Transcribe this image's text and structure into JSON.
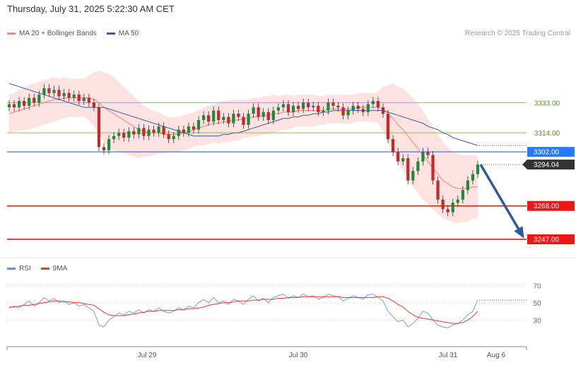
{
  "header": {
    "timestamp": "Thursday, July 31, 2025 5:22:30 AM CET"
  },
  "legend_main": [
    {
      "label": "MA 20 + Bollinger Bands",
      "color": "#f28b82"
    },
    {
      "label": "MA 50",
      "color": "#3d5a99"
    }
  ],
  "credit": "Research © 2025 Trading Central",
  "legend_rsi": [
    {
      "label": "RSI",
      "color": "#6a8fd8"
    },
    {
      "label": "9MA",
      "color": "#e53935"
    }
  ],
  "chart_data": [
    {
      "type": "candlestick",
      "x_ticks": [
        "Jul 29",
        "Jul 30",
        "Jul 31",
        "Aug 6"
      ],
      "ylim": [
        3235,
        3370
      ],
      "levels": [
        {
          "label": "3333.00",
          "value": 3333,
          "style": "line",
          "color": "#8bc34a"
        },
        {
          "label": "3314.00",
          "value": 3314,
          "style": "line",
          "color": "#8bc34a"
        },
        {
          "label": "3302.00",
          "value": 3302,
          "style": "box",
          "color": "#2979ff"
        },
        {
          "label": "3294.04",
          "value": 3294.04,
          "style": "price",
          "color": "#333333"
        },
        {
          "label": "3268.00",
          "value": 3268,
          "style": "box",
          "color": "#f01414"
        },
        {
          "label": "3247.00",
          "value": 3247,
          "style": "box",
          "color": "#f01414"
        }
      ],
      "forecast_arrow": {
        "from": 3294.04,
        "to": 3247
      },
      "close": [
        3332,
        3330,
        3334,
        3331,
        3336,
        3333,
        3338,
        3342,
        3339,
        3341,
        3337,
        3339,
        3336,
        3338,
        3334,
        3336,
        3333,
        3330,
        3305,
        3303,
        3310,
        3312,
        3314,
        3311,
        3315,
        3313,
        3317,
        3312,
        3316,
        3314,
        3318,
        3313,
        3310,
        3312,
        3316,
        3314,
        3318,
        3316,
        3322,
        3325,
        3321,
        3328,
        3322,
        3324,
        3320,
        3326,
        3324,
        3319,
        3326,
        3330,
        3324,
        3327,
        3322,
        3328,
        3330,
        3332,
        3327,
        3331,
        3329,
        3333,
        3330,
        3331,
        3327,
        3328,
        3333,
        3331,
        3330,
        3325,
        3328,
        3331,
        3329,
        3327,
        3332,
        3334,
        3330,
        3326,
        3310,
        3302,
        3296,
        3298,
        3284,
        3290,
        3296,
        3302,
        3300,
        3284,
        3272,
        3266,
        3264,
        3270,
        3272,
        3278,
        3284,
        3288,
        3294
      ],
      "ma20": [
        3326,
        3327,
        3328,
        3329,
        3330,
        3331,
        3332,
        3333,
        3334,
        3335,
        3335,
        3336,
        3336,
        3336,
        3336,
        3336,
        3336,
        3335,
        3333,
        3330,
        3328,
        3326,
        3324,
        3322,
        3320,
        3318,
        3316,
        3315,
        3314,
        3314,
        3314,
        3313,
        3313,
        3313,
        3313,
        3314,
        3315,
        3316,
        3317,
        3318,
        3319,
        3320,
        3320,
        3321,
        3321,
        3322,
        3322,
        3323,
        3323,
        3324,
        3324,
        3325,
        3325,
        3326,
        3326,
        3327,
        3327,
        3327,
        3328,
        3328,
        3328,
        3328,
        3328,
        3328,
        3329,
        3329,
        3329,
        3329,
        3329,
        3329,
        3330,
        3330,
        3330,
        3330,
        3330,
        3329,
        3326,
        3323,
        3319,
        3316,
        3312,
        3308,
        3304,
        3300,
        3296,
        3292,
        3288,
        3284,
        3282,
        3280,
        3279,
        3279,
        3279,
        3280,
        3280
      ],
      "ma50": [
        3345,
        3344,
        3343,
        3342,
        3341,
        3340,
        3339,
        3338,
        3337,
        3336,
        3335,
        3334,
        3333,
        3332,
        3331,
        3330,
        3330,
        3330,
        3330,
        3330,
        3329,
        3328,
        3327,
        3326,
        3325,
        3324,
        3323,
        3322,
        3321,
        3320,
        3319,
        3318,
        3317,
        3316,
        3315,
        3314,
        3313,
        3312,
        3312,
        3312,
        3312,
        3312,
        3312,
        3313,
        3313,
        3314,
        3314,
        3315,
        3316,
        3317,
        3318,
        3319,
        3320,
        3321,
        3322,
        3323,
        3323,
        3324,
        3324,
        3325,
        3325,
        3326,
        3326,
        3327,
        3327,
        3328,
        3328,
        3328,
        3328,
        3328,
        3328,
        3328,
        3328,
        3328,
        3328,
        3328,
        3327,
        3326,
        3325,
        3324,
        3323,
        3322,
        3321,
        3320,
        3318,
        3317,
        3316,
        3314,
        3313,
        3311,
        3310,
        3309,
        3308,
        3307,
        3306
      ],
      "bb_width": [
        12,
        12,
        13,
        13,
        14,
        14,
        14,
        14,
        14,
        14,
        13,
        13,
        12,
        12,
        12,
        12,
        14,
        17,
        20,
        22,
        23,
        23,
        22,
        21,
        20,
        19,
        18,
        16,
        15,
        14,
        13,
        12,
        11,
        11,
        11,
        11,
        11,
        11,
        11,
        12,
        12,
        12,
        13,
        13,
        13,
        13,
        13,
        12,
        12,
        12,
        12,
        12,
        12,
        12,
        11,
        11,
        11,
        10,
        10,
        10,
        10,
        10,
        9,
        9,
        9,
        9,
        9,
        9,
        9,
        9,
        9,
        9,
        9,
        9,
        10,
        14,
        18,
        22,
        24,
        26,
        27,
        28,
        28,
        28,
        27,
        26,
        25,
        24,
        23,
        22,
        22,
        21,
        21,
        20,
        20
      ],
      "rsi_ylim": [
        0,
        80
      ],
      "rsi_ticks": [
        70,
        50,
        30
      ],
      "rsi": [
        44,
        46,
        44,
        48,
        52,
        46,
        50,
        56,
        52,
        55,
        50,
        52,
        48,
        50,
        46,
        48,
        44,
        40,
        24,
        22,
        30,
        34,
        38,
        36,
        40,
        38,
        42,
        38,
        42,
        40,
        44,
        40,
        38,
        40,
        44,
        42,
        46,
        44,
        50,
        54,
        50,
        56,
        50,
        52,
        48,
        54,
        52,
        48,
        54,
        58,
        52,
        55,
        50,
        56,
        58,
        60,
        55,
        58,
        56,
        60,
        57,
        58,
        54,
        56,
        60,
        58,
        57,
        52,
        55,
        58,
        56,
        54,
        59,
        60,
        56,
        52,
        40,
        34,
        28,
        30,
        22,
        26,
        32,
        40,
        38,
        30,
        24,
        22,
        21,
        24,
        26,
        30,
        36,
        40,
        53
      ],
      "rsi_ma": [
        45,
        45,
        46,
        47,
        47,
        48,
        49,
        50,
        51,
        52,
        52,
        51,
        51,
        50,
        50,
        49,
        48,
        47,
        43,
        39,
        36,
        35,
        35,
        35,
        36,
        37,
        38,
        39,
        40,
        40,
        41,
        41,
        41,
        41,
        42,
        42,
        43,
        43,
        44,
        45,
        47,
        48,
        49,
        50,
        50,
        51,
        52,
        52,
        52,
        53,
        53,
        54,
        54,
        54,
        55,
        55,
        56,
        56,
        56,
        57,
        57,
        57,
        57,
        57,
        57,
        57,
        57,
        56,
        56,
        56,
        56,
        56,
        56,
        56,
        57,
        57,
        55,
        52,
        48,
        45,
        40,
        36,
        33,
        32,
        31,
        30,
        29,
        28,
        27,
        26,
        26,
        27,
        30,
        34,
        40
      ]
    }
  ]
}
